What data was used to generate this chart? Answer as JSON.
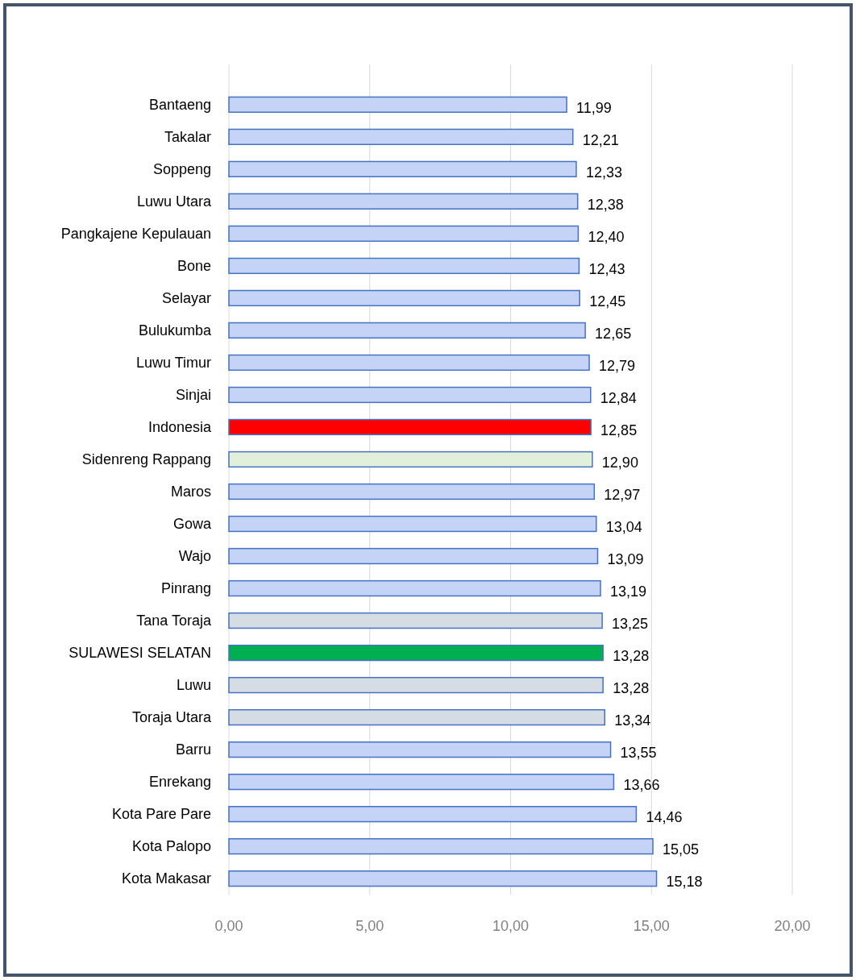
{
  "chart_data": {
    "type": "bar",
    "orientation": "horizontal",
    "categories": [
      "Bantaeng",
      "Takalar",
      "Soppeng",
      "Luwu Utara",
      "Pangkajene Kepulauan",
      "Bone",
      "Selayar",
      "Bulukumba",
      "Luwu Timur",
      "Sinjai",
      "Indonesia",
      "Sidenreng Rappang",
      "Maros",
      "Gowa",
      "Wajo",
      "Pinrang",
      "Tana Toraja",
      "SULAWESI SELATAN",
      "Luwu",
      "Toraja Utara",
      "Barru",
      "Enrekang",
      "Kota Pare Pare",
      "Kota Palopo",
      "Kota Makasar"
    ],
    "values": [
      11.99,
      12.21,
      12.33,
      12.38,
      12.4,
      12.43,
      12.45,
      12.65,
      12.79,
      12.84,
      12.85,
      12.9,
      12.97,
      13.04,
      13.09,
      13.19,
      13.25,
      13.28,
      13.28,
      13.34,
      13.55,
      13.66,
      14.46,
      15.05,
      15.18
    ],
    "value_labels": [
      "11,99",
      "12,21",
      "12,33",
      "12,38",
      "12,40",
      "12,43",
      "12,45",
      "12,65",
      "12,79",
      "12,84",
      "12,85",
      "12,90",
      "12,97",
      "13,04",
      "13,09",
      "13,19",
      "13,25",
      "13,28",
      "13,28",
      "13,34",
      "13,55",
      "13,66",
      "14,46",
      "15,05",
      "15,18"
    ],
    "colors": [
      "#c5d3f6",
      "#c5d3f6",
      "#c5d3f6",
      "#c5d3f6",
      "#c5d3f6",
      "#c5d3f6",
      "#c5d3f6",
      "#c5d3f6",
      "#c5d3f6",
      "#c5d3f6",
      "#ff0000",
      "#e2efda",
      "#c5d3f6",
      "#c5d3f6",
      "#c5d3f6",
      "#c5d3f6",
      "#d6dce4",
      "#00b050",
      "#d6dce4",
      "#d6dce4",
      "#c5d3f6",
      "#c5d3f6",
      "#c5d3f6",
      "#c5d3f6",
      "#c5d3f6"
    ],
    "xlim": [
      0,
      20
    ],
    "xticks": [
      {
        "value": 0,
        "label": "0,00"
      },
      {
        "value": 5,
        "label": "5,00"
      },
      {
        "value": 10,
        "label": "10,00"
      },
      {
        "value": 15,
        "label": "15,00"
      },
      {
        "value": 20,
        "label": "20,00"
      }
    ],
    "grid": "x"
  }
}
